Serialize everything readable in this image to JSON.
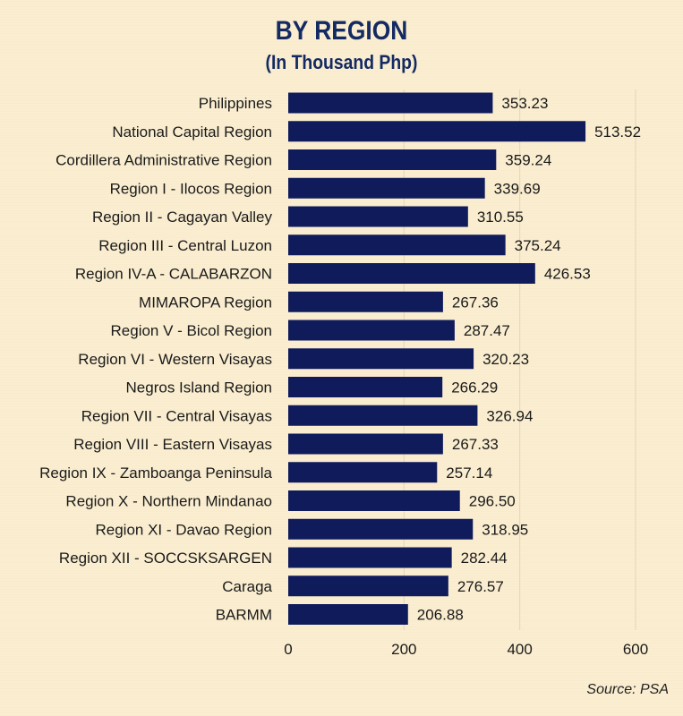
{
  "header": {
    "title": "BY REGION",
    "subtitle": "(In Thousand Php)"
  },
  "footer": {
    "source": "Source: PSA"
  },
  "colors": {
    "bar": "#101b5c",
    "background": "#fbeed0",
    "title": "#142a63"
  },
  "chart_data": {
    "type": "bar",
    "orientation": "horizontal",
    "title": "BY REGION",
    "subtitle": "(In Thousand Php)",
    "categories": [
      "Philippines",
      "National Capital Region",
      "Cordillera Administrative Region",
      "Region I - Ilocos Region",
      "Region II - Cagayan Valley",
      "Region III - Central Luzon",
      "Region IV-A - CALABARZON",
      "MIMAROPA Region",
      "Region V - Bicol Region",
      "Region VI - Western Visayas",
      "Negros Island Region",
      "Region VII - Central Visayas",
      "Region VIII - Eastern Visayas",
      "Region IX - Zamboanga Peninsula",
      "Region X - Northern Mindanao",
      "Region XI - Davao Region",
      "Region XII - SOCCSKSARGEN",
      "Caraga",
      "BARMM"
    ],
    "values": [
      353.23,
      513.52,
      359.24,
      339.69,
      310.55,
      375.24,
      426.53,
      267.36,
      287.47,
      320.23,
      266.29,
      326.94,
      267.33,
      257.14,
      296.5,
      318.95,
      282.44,
      276.57,
      206.88
    ],
    "value_labels": [
      "353.23",
      "513.52",
      "359.24",
      "339.69",
      "310.55",
      "375.24",
      "426.53",
      "267.36",
      "287.47",
      "320.23",
      "266.29",
      "326.94",
      "267.33",
      "257.14",
      "296.50",
      "318.95",
      "282.44",
      "276.57",
      "206.88"
    ],
    "xticks": [
      0,
      200,
      400,
      600
    ],
    "xlim": [
      0,
      600
    ],
    "xlabel": "",
    "ylabel": "",
    "grid": true
  }
}
